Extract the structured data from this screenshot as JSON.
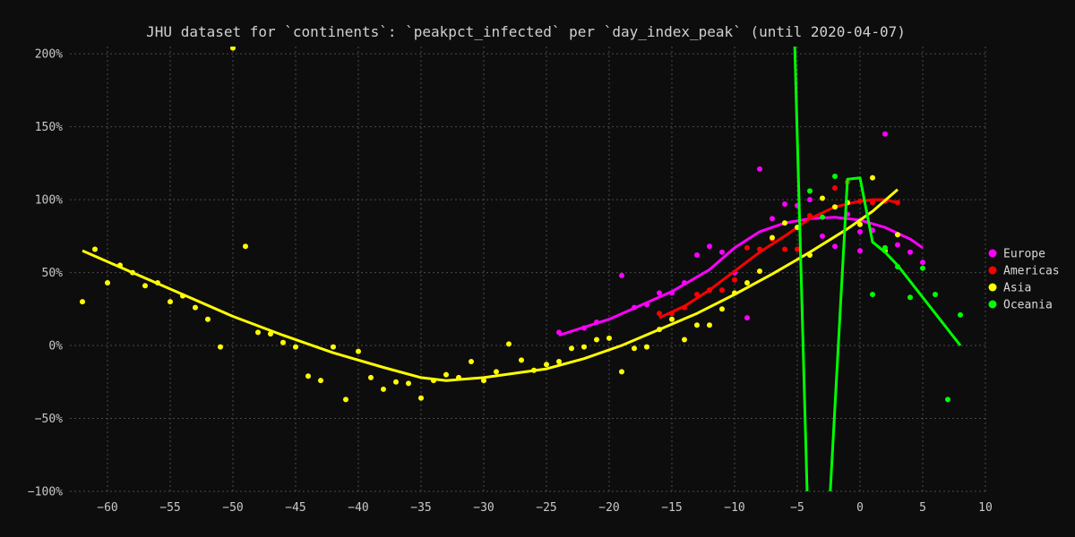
{
  "chart_data": {
    "type": "scatter",
    "title": "JHU dataset for `continents`: `peakpct_infected` per `day_index_peak` (until 2020-04-07)",
    "xlabel": "",
    "ylabel": "",
    "xlim": [
      -63,
      10
    ],
    "ylim": [
      -100,
      205
    ],
    "x_ticks": [
      -60,
      -55,
      -50,
      -45,
      -40,
      -35,
      -30,
      -25,
      -20,
      -15,
      -10,
      -5,
      0,
      5,
      10
    ],
    "x_tick_labels": [
      "−60",
      "−55",
      "−50",
      "−45",
      "−40",
      "−35",
      "−30",
      "−25",
      "−20",
      "−15",
      "−10",
      "−5",
      "0",
      "5",
      "10"
    ],
    "y_ticks": [
      -100,
      -50,
      0,
      50,
      100,
      150,
      200
    ],
    "y_tick_labels": [
      "−100%",
      "−50%",
      "0%",
      "50%",
      "100%",
      "150%",
      "200%"
    ],
    "grid": true,
    "legend_position": "right",
    "series": [
      {
        "name": "Europe",
        "color": "#ff00ff",
        "points": [
          [
            -24,
            9
          ],
          [
            -22,
            12
          ],
          [
            -21,
            16
          ],
          [
            -19,
            48
          ],
          [
            -18,
            26
          ],
          [
            -17,
            28
          ],
          [
            -16,
            36
          ],
          [
            -15,
            36
          ],
          [
            -14,
            43
          ],
          [
            -13,
            62
          ],
          [
            -12,
            68
          ],
          [
            -11,
            64
          ],
          [
            -10,
            50
          ],
          [
            -9,
            19
          ],
          [
            -8,
            121
          ],
          [
            -7,
            87
          ],
          [
            -6,
            97
          ],
          [
            -5,
            96
          ],
          [
            -4,
            100
          ],
          [
            -3,
            75
          ],
          [
            -2,
            68
          ],
          [
            -1,
            90
          ],
          [
            0,
            78
          ],
          [
            0,
            65
          ],
          [
            1,
            79
          ],
          [
            2,
            145
          ],
          [
            3,
            69
          ],
          [
            4,
            64
          ],
          [
            5,
            57
          ]
        ],
        "trend": [
          [
            -24,
            7
          ],
          [
            -20,
            18
          ],
          [
            -15,
            37
          ],
          [
            -12,
            52
          ],
          [
            -10,
            67
          ],
          [
            -8,
            78
          ],
          [
            -6,
            84
          ],
          [
            -4,
            87
          ],
          [
            -2,
            88
          ],
          [
            0,
            86
          ],
          [
            2,
            81
          ],
          [
            4,
            73
          ],
          [
            5,
            67
          ]
        ]
      },
      {
        "name": "Americas",
        "color": "#ff0000",
        "points": [
          [
            -16,
            22
          ],
          [
            -15,
            22
          ],
          [
            -14,
            26
          ],
          [
            -13,
            35
          ],
          [
            -12,
            38
          ],
          [
            -11,
            38
          ],
          [
            -10,
            45
          ],
          [
            -9,
            67
          ],
          [
            -8,
            66
          ],
          [
            -7,
            73
          ],
          [
            -6,
            66
          ],
          [
            -5,
            66
          ],
          [
            -4,
            89
          ],
          [
            -2,
            108
          ],
          [
            -1,
            112
          ],
          [
            0,
            99
          ],
          [
            1,
            98
          ],
          [
            2,
            99
          ],
          [
            3,
            98
          ]
        ],
        "trend": [
          [
            -16,
            19
          ],
          [
            -14,
            27
          ],
          [
            -12,
            38
          ],
          [
            -10,
            51
          ],
          [
            -8,
            64
          ],
          [
            -6,
            75
          ],
          [
            -4,
            87
          ],
          [
            -2,
            95
          ],
          [
            0,
            99
          ],
          [
            1,
            100
          ],
          [
            2,
            100
          ],
          [
            3,
            98
          ]
        ]
      },
      {
        "name": "Asia",
        "color": "#ffff00",
        "points": [
          [
            -62,
            30
          ],
          [
            -61,
            66
          ],
          [
            -60,
            43
          ],
          [
            -59,
            55
          ],
          [
            -58,
            50
          ],
          [
            -57,
            41
          ],
          [
            -56,
            43
          ],
          [
            -55,
            30
          ],
          [
            -54,
            34
          ],
          [
            -53,
            26
          ],
          [
            -52,
            18
          ],
          [
            -51,
            -1
          ],
          [
            -50,
            204
          ],
          [
            -49,
            68
          ],
          [
            -48,
            9
          ],
          [
            -47,
            8
          ],
          [
            -46,
            2
          ],
          [
            -45,
            -1
          ],
          [
            -44,
            -21
          ],
          [
            -43,
            -24
          ],
          [
            -42,
            -1
          ],
          [
            -41,
            -37
          ],
          [
            -40,
            -4
          ],
          [
            -39,
            -22
          ],
          [
            -38,
            -30
          ],
          [
            -37,
            -25
          ],
          [
            -36,
            -26
          ],
          [
            -35,
            -36
          ],
          [
            -34,
            -24
          ],
          [
            -33,
            -20
          ],
          [
            -32,
            -22
          ],
          [
            -31,
            -11
          ],
          [
            -30,
            -24
          ],
          [
            -29,
            -18
          ],
          [
            -28,
            1
          ],
          [
            -27,
            -10
          ],
          [
            -26,
            -17
          ],
          [
            -25,
            -13
          ],
          [
            -24,
            -11
          ],
          [
            -23,
            -2
          ],
          [
            -22,
            -1
          ],
          [
            -21,
            4
          ],
          [
            -20,
            5
          ],
          [
            -19,
            -18
          ],
          [
            -18,
            -2
          ],
          [
            -17,
            -1
          ],
          [
            -16,
            11
          ],
          [
            -15,
            18
          ],
          [
            -14,
            4
          ],
          [
            -13,
            14
          ],
          [
            -12,
            14
          ],
          [
            -11,
            25
          ],
          [
            -10,
            36
          ],
          [
            -9,
            43
          ],
          [
            -8,
            51
          ],
          [
            -7,
            74
          ],
          [
            -6,
            84
          ],
          [
            -5,
            81
          ],
          [
            -4,
            62
          ],
          [
            -3,
            101
          ],
          [
            -2,
            95
          ],
          [
            -1,
            98
          ],
          [
            0,
            83
          ],
          [
            1,
            115
          ],
          [
            2,
            65
          ],
          [
            3,
            76
          ]
        ],
        "trend": [
          [
            -62,
            65
          ],
          [
            -58,
            50
          ],
          [
            -54,
            35
          ],
          [
            -50,
            20
          ],
          [
            -46,
            7
          ],
          [
            -42,
            -5
          ],
          [
            -38,
            -15
          ],
          [
            -35,
            -22
          ],
          [
            -33,
            -24
          ],
          [
            -30,
            -22
          ],
          [
            -25,
            -16
          ],
          [
            -22,
            -9
          ],
          [
            -19,
            0
          ],
          [
            -16,
            11
          ],
          [
            -13,
            22
          ],
          [
            -10,
            35
          ],
          [
            -7,
            49
          ],
          [
            -4,
            64
          ],
          [
            -1,
            80
          ],
          [
            1,
            92
          ],
          [
            3,
            107
          ]
        ]
      },
      {
        "name": "Oceania",
        "color": "#00ff00",
        "points": [
          [
            -4,
            106
          ],
          [
            -3,
            88
          ],
          [
            -2,
            116
          ],
          [
            1,
            35
          ],
          [
            2,
            67
          ],
          [
            3,
            54
          ],
          [
            4,
            33
          ],
          [
            5,
            53
          ],
          [
            6,
            35
          ],
          [
            7,
            -37
          ],
          [
            8,
            21
          ]
        ],
        "trend": [
          [
            -5.2,
            205
          ],
          [
            -4.2,
            -105
          ],
          [
            -2.4,
            -105
          ],
          [
            -1,
            114
          ],
          [
            0,
            115
          ],
          [
            1,
            71
          ],
          [
            2,
            64
          ],
          [
            3,
            55
          ],
          [
            8,
            0
          ]
        ]
      }
    ]
  }
}
